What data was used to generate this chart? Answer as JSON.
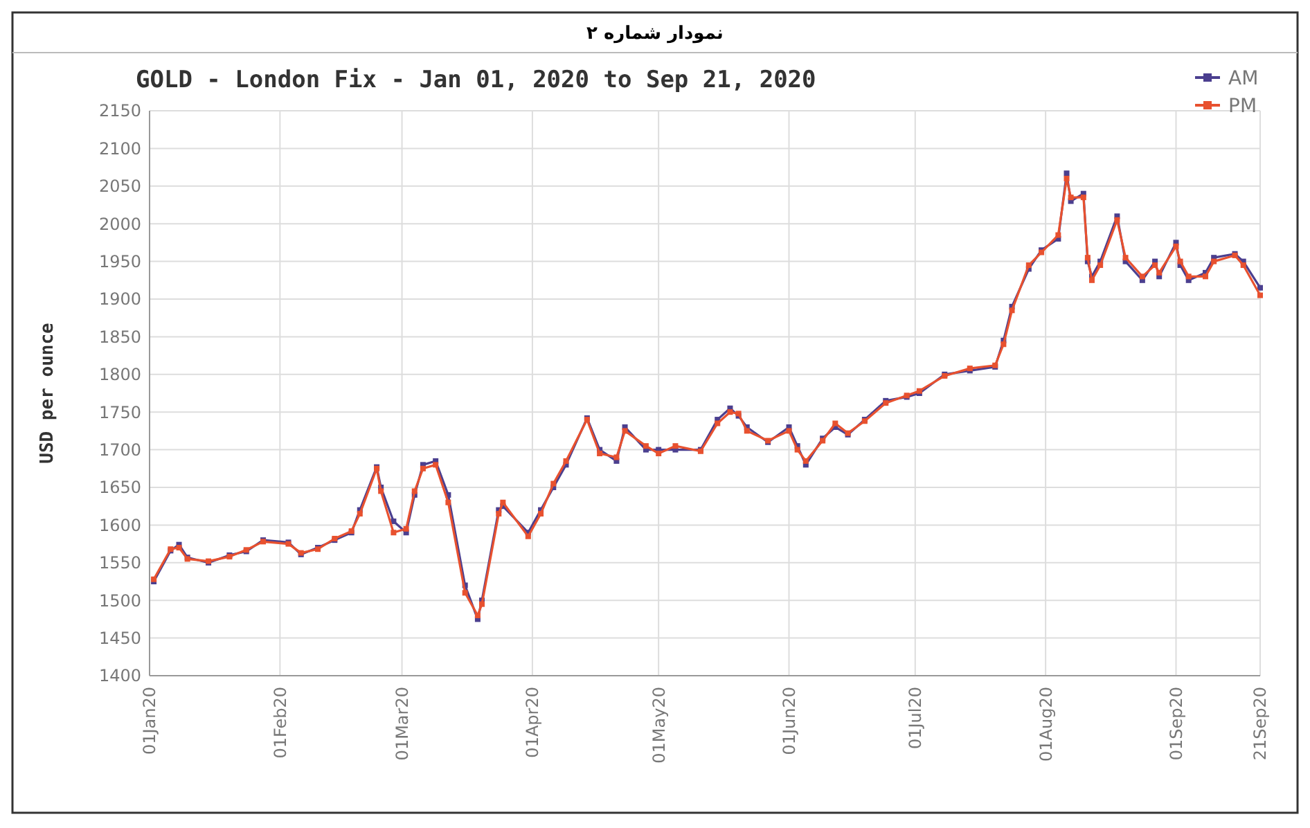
{
  "chart_data": {
    "type": "line",
    "title": "نمودار شماره ۲",
    "subtitle": "GOLD - London Fix - Jan 01, 2020 to Sep 21, 2020",
    "ylabel": "USD per ounce",
    "xlim": [
      "2020-01-01",
      "2020-09-21"
    ],
    "xticks": [
      {
        "value": "2020-01-01",
        "label": "01Jan20"
      },
      {
        "value": "2020-02-01",
        "label": "01Feb20"
      },
      {
        "value": "2020-03-01",
        "label": "01Mar20"
      },
      {
        "value": "2020-04-01",
        "label": "01Apr20"
      },
      {
        "value": "2020-05-01",
        "label": "01May20"
      },
      {
        "value": "2020-06-01",
        "label": "01Jun20"
      },
      {
        "value": "2020-07-01",
        "label": "01Jul20"
      },
      {
        "value": "2020-08-01",
        "label": "01Aug20"
      },
      {
        "value": "2020-09-01",
        "label": "01Sep20"
      },
      {
        "value": "2020-09-21",
        "label": "21Sep20"
      }
    ],
    "ylim": [
      1400,
      2150
    ],
    "yticks": [
      1400,
      1450,
      1500,
      1550,
      1600,
      1650,
      1700,
      1750,
      1800,
      1850,
      1900,
      1950,
      2000,
      2050,
      2100,
      2150
    ],
    "grid": true,
    "legend": "top right",
    "marker": "square",
    "line_style": "solid",
    "x": [
      "2020-01-02",
      "2020-01-06",
      "2020-01-08",
      "2020-01-10",
      "2020-01-15",
      "2020-01-20",
      "2020-01-24",
      "2020-01-28",
      "2020-02-03",
      "2020-02-06",
      "2020-02-10",
      "2020-02-14",
      "2020-02-18",
      "2020-02-20",
      "2020-02-24",
      "2020-02-25",
      "2020-02-28",
      "2020-03-02",
      "2020-03-04",
      "2020-03-06",
      "2020-03-09",
      "2020-03-12",
      "2020-03-16",
      "2020-03-19",
      "2020-03-20",
      "2020-03-24",
      "2020-03-25",
      "2020-03-31",
      "2020-04-03",
      "2020-04-06",
      "2020-04-09",
      "2020-04-14",
      "2020-04-17",
      "2020-04-21",
      "2020-04-23",
      "2020-04-28",
      "2020-05-01",
      "2020-05-05",
      "2020-05-11",
      "2020-05-15",
      "2020-05-18",
      "2020-05-20",
      "2020-05-22",
      "2020-05-27",
      "2020-06-01",
      "2020-06-03",
      "2020-06-05",
      "2020-06-09",
      "2020-06-12",
      "2020-06-15",
      "2020-06-19",
      "2020-06-24",
      "2020-06-29",
      "2020-07-02",
      "2020-07-08",
      "2020-07-14",
      "2020-07-20",
      "2020-07-22",
      "2020-07-24",
      "2020-07-28",
      "2020-07-31",
      "2020-08-04",
      "2020-08-06",
      "2020-08-07",
      "2020-08-10",
      "2020-08-11",
      "2020-08-12",
      "2020-08-14",
      "2020-08-18",
      "2020-08-20",
      "2020-08-24",
      "2020-08-27",
      "2020-08-28",
      "2020-09-01",
      "2020-09-02",
      "2020-09-04",
      "2020-09-08",
      "2020-09-10",
      "2020-09-15",
      "2020-09-17",
      "2020-09-21"
    ],
    "series": [
      {
        "name": "AM",
        "color": "#4b3f8f",
        "values": [
          1525,
          1566,
          1574,
          1557,
          1550,
          1560,
          1565,
          1580,
          1577,
          1561,
          1570,
          1580,
          1590,
          1620,
          1677,
          1650,
          1605,
          1590,
          1640,
          1680,
          1685,
          1640,
          1520,
          1475,
          1500,
          1620,
          1625,
          1590,
          1620,
          1650,
          1680,
          1742,
          1700,
          1685,
          1730,
          1700,
          1700,
          1700,
          1700,
          1740,
          1755,
          1745,
          1730,
          1710,
          1730,
          1705,
          1680,
          1715,
          1730,
          1720,
          1740,
          1765,
          1770,
          1775,
          1800,
          1805,
          1810,
          1845,
          1890,
          1940,
          1965,
          1980,
          2067,
          2030,
          2040,
          1950,
          1930,
          1950,
          2010,
          1950,
          1925,
          1950,
          1930,
          1975,
          1945,
          1925,
          1935,
          1955,
          1960,
          1950,
          1915
        ]
      },
      {
        "name": "PM",
        "color": "#e8512f",
        "values": [
          1528,
          1568,
          1570,
          1555,
          1552,
          1558,
          1567,
          1578,
          1575,
          1563,
          1568,
          1582,
          1592,
          1615,
          1675,
          1645,
          1590,
          1595,
          1645,
          1675,
          1680,
          1630,
          1510,
          1480,
          1495,
          1615,
          1630,
          1585,
          1615,
          1655,
          1685,
          1740,
          1695,
          1690,
          1725,
          1705,
          1695,
          1705,
          1698,
          1735,
          1750,
          1748,
          1725,
          1712,
          1725,
          1700,
          1685,
          1712,
          1735,
          1722,
          1738,
          1762,
          1772,
          1778,
          1798,
          1808,
          1812,
          1840,
          1885,
          1945,
          1962,
          1985,
          2060,
          2035,
          2035,
          1955,
          1925,
          1945,
          2005,
          1955,
          1930,
          1945,
          1935,
          1970,
          1950,
          1930,
          1930,
          1950,
          1958,
          1945,
          1905
        ]
      }
    ]
  }
}
